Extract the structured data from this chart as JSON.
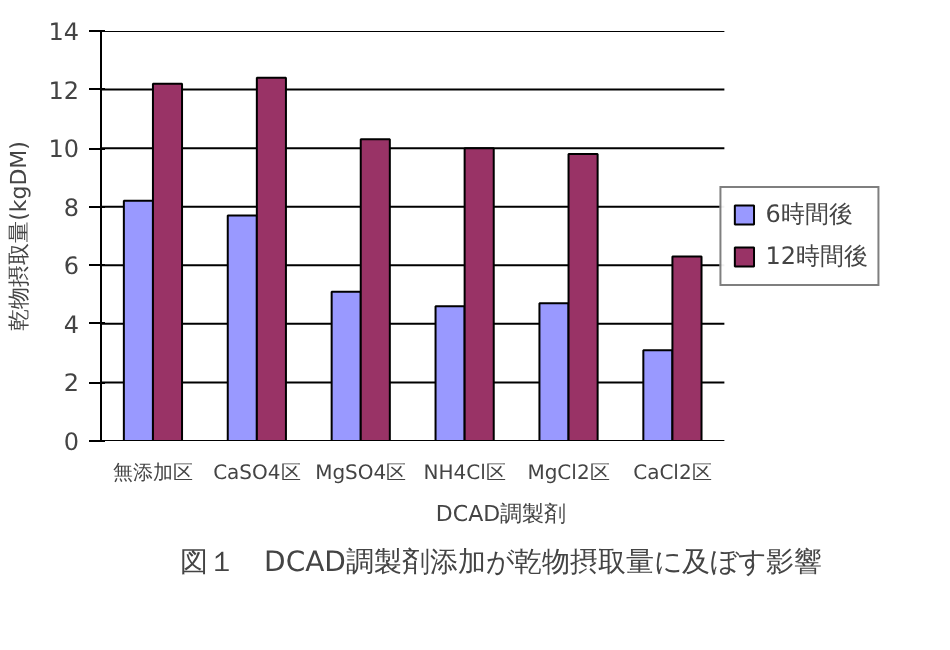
{
  "chart_data": {
    "type": "bar",
    "xlabel": "DCAD調製剤",
    "ylabel": "乾物摂取量(kgDM)",
    "categories": [
      "無添加区",
      "CaSO4区",
      "MgSO4区",
      "NH4Cl区",
      "MgCl2区",
      "CaCl2区"
    ],
    "series": [
      {
        "name": "6時間後",
        "color": "#9999ff",
        "values": [
          8.2,
          7.7,
          5.1,
          4.6,
          4.7,
          3.1
        ]
      },
      {
        "name": "12時間後",
        "color": "#993366",
        "values": [
          12.2,
          12.4,
          10.3,
          10.0,
          9.8,
          6.3
        ]
      }
    ],
    "ylim": [
      0,
      14
    ],
    "yticks": [
      0,
      2,
      4,
      6,
      8,
      10,
      12,
      14
    ],
    "grid": "y",
    "legend": "right",
    "annotations": [
      "図１　DCAD調製剤添加が乾物摂取量に及ぼす影響"
    ]
  }
}
